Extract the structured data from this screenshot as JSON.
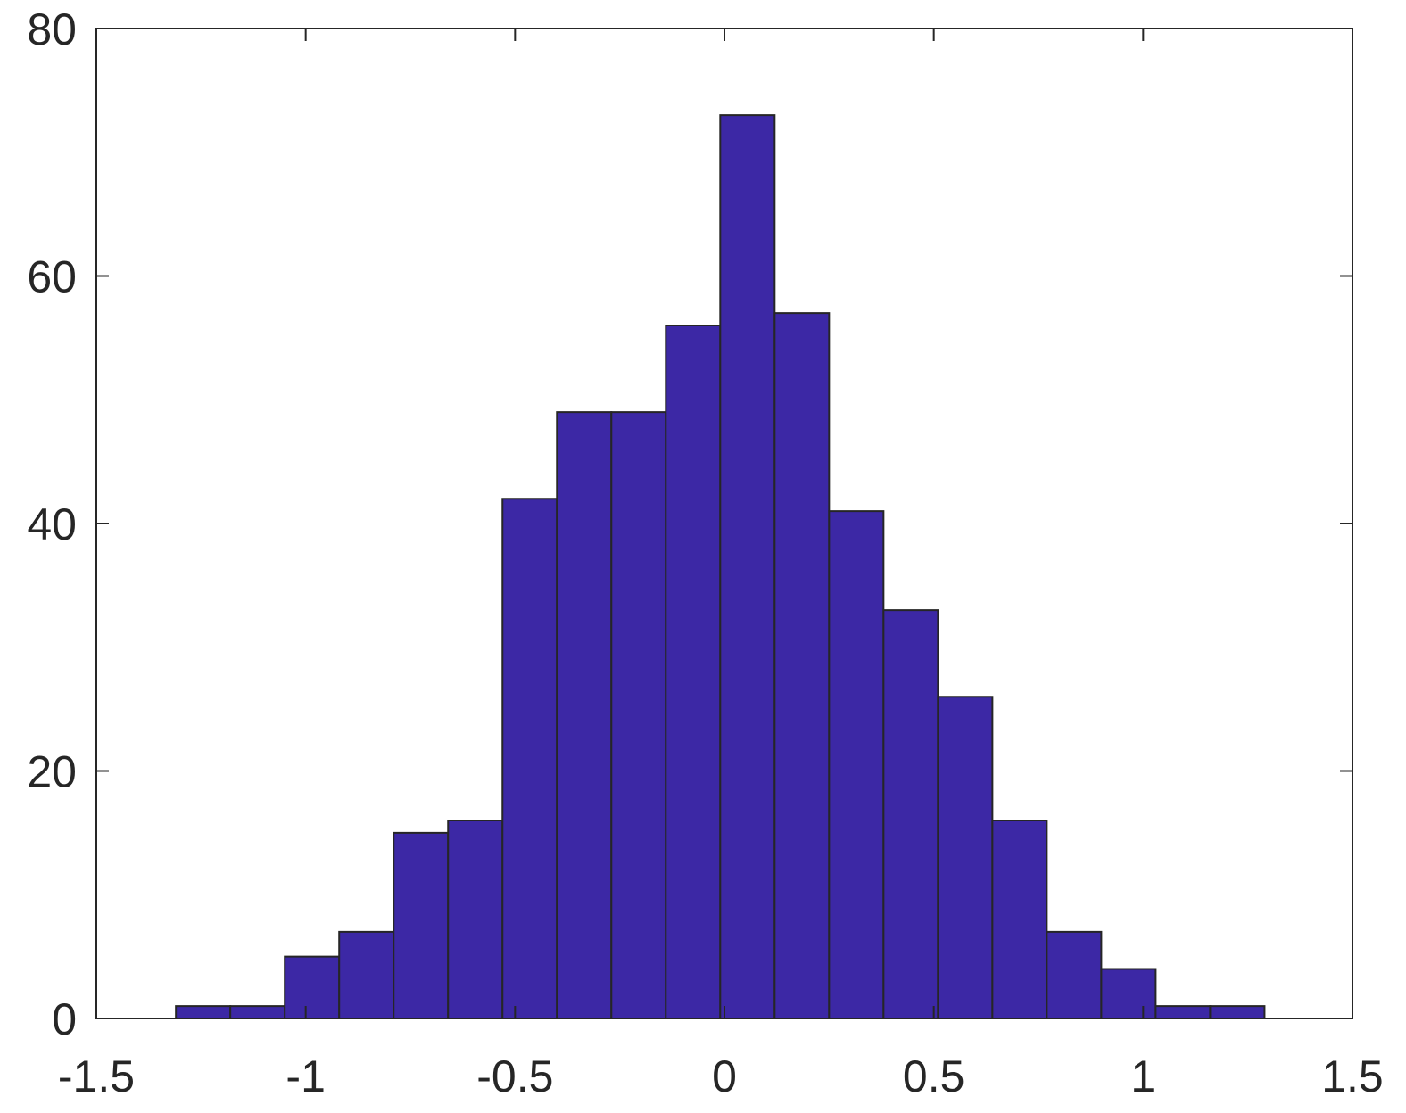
{
  "chart_data": {
    "type": "histogram",
    "bins": [
      -1.31,
      -1.18,
      -1.05,
      -0.92,
      -0.79,
      -0.66,
      -0.53,
      -0.4,
      -0.27,
      -0.14,
      -0.01,
      0.12,
      0.25,
      0.38,
      0.51,
      0.64,
      0.77,
      0.9,
      1.03,
      1.16,
      1.29
    ],
    "counts": [
      1,
      1,
      5,
      7,
      15,
      16,
      42,
      49,
      49,
      56,
      73,
      57,
      41,
      33,
      26,
      16,
      7,
      4,
      1,
      1
    ],
    "color": "#3c28a5",
    "xlim": [
      -1.5,
      1.5
    ],
    "xticks": [
      -1.5,
      -1,
      -0.5,
      0,
      0.5,
      1,
      1.5
    ],
    "ylim": [
      0,
      80
    ],
    "yticks": [
      0,
      20,
      40,
      60,
      80
    ],
    "grid": false
  }
}
